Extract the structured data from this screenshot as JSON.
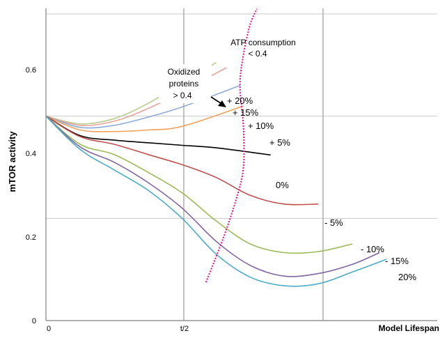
{
  "chart_data": {
    "type": "line",
    "ylabel": "mTOR activity",
    "xlabel": "Model Lifespan",
    "ylim": [
      0,
      0.6
    ],
    "yticks": [
      "0",
      "0.2",
      "0.4",
      "0.6"
    ],
    "xticks": [
      "0",
      "t/2"
    ],
    "grid": true,
    "series": [
      {
        "name": "+ 20%",
        "color": "#b5cc8e",
        "x": [
          0,
          0.1,
          0.2,
          0.3,
          0.4,
          0.5
        ],
        "values": [
          0.4,
          0.385,
          0.395,
          0.425,
          0.465,
          0.505
        ]
      },
      {
        "name": "+ 15%",
        "color": "#e6a49c",
        "x": [
          0,
          0.1,
          0.2,
          0.3,
          0.4,
          0.53
        ],
        "values": [
          0.4,
          0.382,
          0.39,
          0.415,
          0.448,
          0.495
        ]
      },
      {
        "name": "+ 10%",
        "color": "#8eaadb",
        "x": [
          0,
          0.1,
          0.2,
          0.3,
          0.4,
          0.57
        ],
        "values": [
          0.4,
          0.378,
          0.382,
          0.398,
          0.418,
          0.46
        ]
      },
      {
        "name": "+ 5%",
        "color": "#f4a15b",
        "x": [
          0,
          0.1,
          0.2,
          0.3,
          0.4,
          0.58
        ],
        "values": [
          0.4,
          0.373,
          0.37,
          0.373,
          0.38,
          0.42
        ]
      },
      {
        "name": "0%",
        "color": "#000000",
        "x": [
          0,
          0.1,
          0.2,
          0.3,
          0.4,
          0.5,
          0.66
        ],
        "values": [
          0.4,
          0.362,
          0.353,
          0.348,
          0.343,
          0.338,
          0.324
        ]
      },
      {
        "name": "- 5%",
        "color": "#c0504d",
        "x": [
          0,
          0.1,
          0.2,
          0.3,
          0.4,
          0.5,
          0.6,
          0.7,
          0.8
        ],
        "values": [
          0.4,
          0.36,
          0.345,
          0.325,
          0.305,
          0.28,
          0.245,
          0.228,
          0.228
        ]
      },
      {
        "name": "- 10%",
        "color": "#9bbb59",
        "x": [
          0,
          0.1,
          0.2,
          0.3,
          0.4,
          0.5,
          0.6,
          0.7,
          0.8,
          0.9
        ],
        "values": [
          0.4,
          0.345,
          0.325,
          0.29,
          0.25,
          0.195,
          0.15,
          0.133,
          0.135,
          0.15
        ]
      },
      {
        "name": "- 15%",
        "color": "#8064a2",
        "x": [
          0,
          0.1,
          0.2,
          0.3,
          0.4,
          0.5,
          0.6,
          0.7,
          0.8,
          0.9,
          0.98
        ],
        "values": [
          0.4,
          0.34,
          0.31,
          0.27,
          0.22,
          0.155,
          0.108,
          0.087,
          0.092,
          0.11,
          0.133
        ]
      },
      {
        "name": "20%",
        "color": "#4bacc6",
        "x": [
          0,
          0.1,
          0.2,
          0.3,
          0.4,
          0.5,
          0.6,
          0.7,
          0.8,
          0.9,
          1.0
        ],
        "values": [
          0.4,
          0.335,
          0.295,
          0.255,
          0.2,
          0.13,
          0.085,
          0.068,
          0.072,
          0.095,
          0.12
        ]
      }
    ],
    "annotations": {
      "oxidized": [
        "Oxidized",
        "proteins",
        "> 0.4"
      ],
      "atp": [
        "ATP consumption",
        "< 0.4"
      ],
      "atp_line": {
        "color": "#e0118f",
        "x": [
          0.47,
          0.52,
          0.56,
          0.58,
          0.58,
          0.57,
          0.58,
          0.6,
          0.62
        ],
        "values": [
          0.075,
          0.16,
          0.24,
          0.3,
          0.38,
          0.46,
          0.52,
          0.58,
          0.61
        ]
      }
    }
  }
}
